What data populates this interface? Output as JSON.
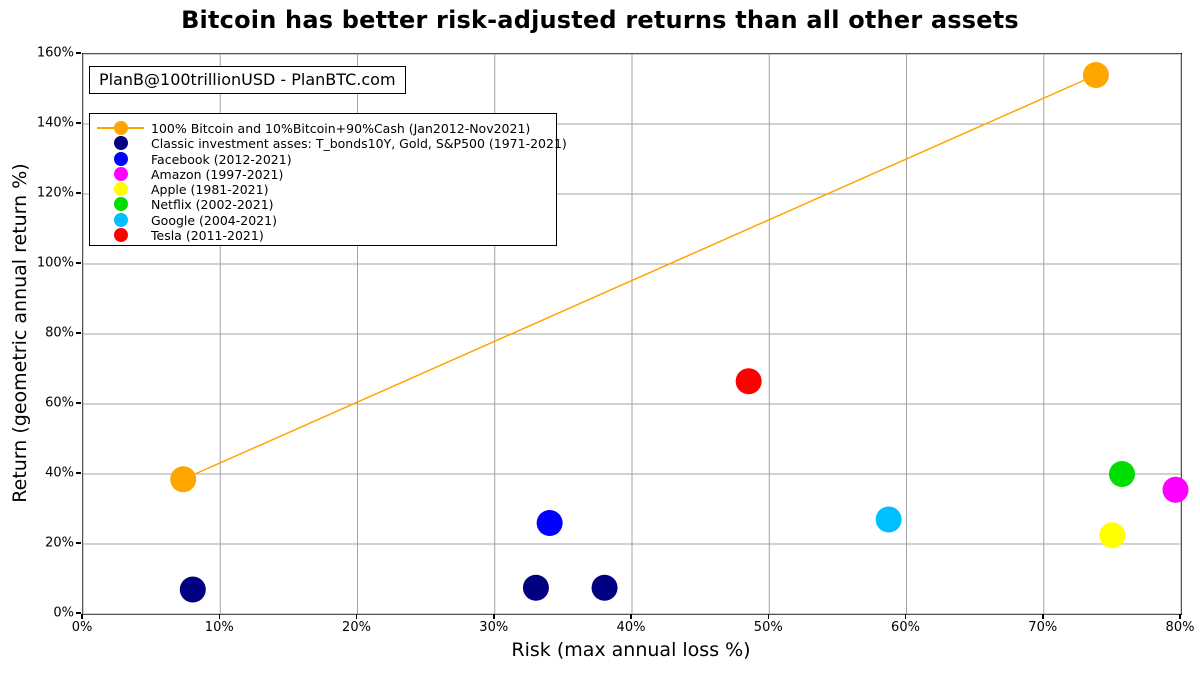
{
  "chart_data": {
    "type": "scatter",
    "title": "Bitcoin has better risk-adjusted returns than all other assets",
    "xlabel": "Risk (max annual loss %)",
    "ylabel": "Return (geometric annual return %)",
    "annotation": "PlanB@100trillionUSD  -  PlanBTC.com",
    "xlim": [
      0,
      80
    ],
    "ylim": [
      0,
      160
    ],
    "x_ticks": [
      0,
      10,
      20,
      30,
      40,
      50,
      60,
      70,
      80
    ],
    "x_tick_labels": [
      "0%",
      "10%",
      "20%",
      "30%",
      "40%",
      "50%",
      "60%",
      "70%",
      "80%"
    ],
    "y_ticks": [
      0,
      20,
      40,
      60,
      80,
      100,
      120,
      140,
      160
    ],
    "y_tick_labels": [
      "0%",
      "20%",
      "40%",
      "60%",
      "80%",
      "100%",
      "120%",
      "140%",
      "160%"
    ],
    "grid": true,
    "grid_color": "#a3a3a3",
    "legend_position": "upper left",
    "series": [
      {
        "name": "100% Bitcoin and 10%Bitcoin+90%Cash (Jan2012-Nov2021)",
        "color": "#FFA500",
        "line": true,
        "points": [
          [
            7.3,
            38.5
          ],
          [
            73.8,
            154
          ]
        ]
      },
      {
        "name": "Classic investment asses: T_bonds10Y, Gold, S&P500 (1971-2021)",
        "color": "#000080",
        "line": false,
        "points": [
          [
            8,
            7
          ],
          [
            33,
            7.5
          ],
          [
            38,
            7.5
          ]
        ]
      },
      {
        "name": "Facebook (2012-2021)",
        "color": "#0000FF",
        "line": false,
        "points": [
          [
            34,
            26
          ]
        ]
      },
      {
        "name": "Amazon (1997-2021)",
        "color": "#FF00FF",
        "line": false,
        "points": [
          [
            79.6,
            35.5
          ]
        ]
      },
      {
        "name": "Apple (1981-2021)",
        "color": "#FFFF00",
        "line": false,
        "points": [
          [
            75,
            22.5
          ]
        ]
      },
      {
        "name": "Netflix (2002-2021)",
        "color": "#00DD00",
        "line": false,
        "points": [
          [
            75.7,
            40
          ]
        ]
      },
      {
        "name": "Google (2004-2021)",
        "color": "#00BFFF",
        "line": false,
        "points": [
          [
            58.7,
            27
          ]
        ]
      },
      {
        "name": "Tesla (2011-2021)",
        "color": "#FF0000",
        "line": false,
        "points": [
          [
            48.5,
            66.5
          ]
        ]
      }
    ]
  }
}
